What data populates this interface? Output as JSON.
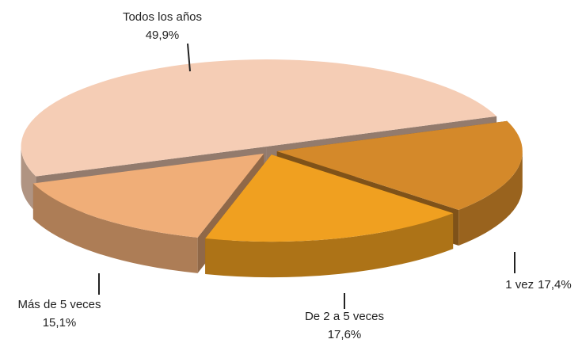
{
  "chart_data": {
    "type": "pie",
    "categories": [
      "Todos los años",
      "1 vez",
      "De 2 a 5 veces",
      "Más de 5 veces"
    ],
    "values": [
      49.9,
      17.4,
      17.6,
      15.1
    ],
    "value_labels": [
      "49,9%",
      "17,4%",
      "17,6%",
      "15,1%"
    ],
    "colors": [
      "#f5cdb5",
      "#d4892a",
      "#f0a020",
      "#f0ae78"
    ]
  }
}
